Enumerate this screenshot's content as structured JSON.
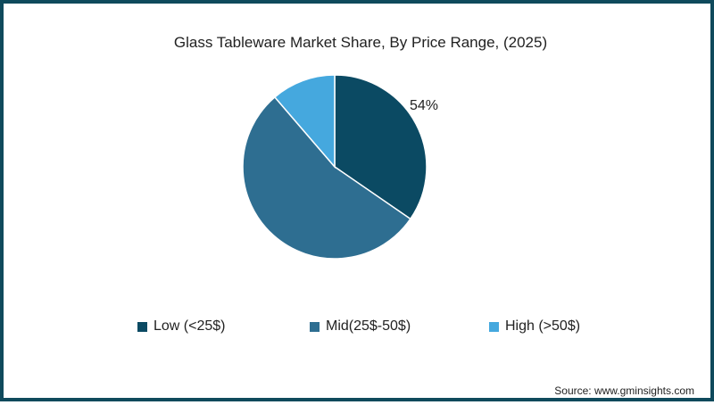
{
  "chart_data": {
    "type": "pie",
    "title": "Glass Tableware Market Share, By Price Range, (2025)",
    "categories": [
      "Low (<25$)",
      "Mid(25$-50$)",
      "High (>50$)"
    ],
    "values": [
      34.6,
      54.1,
      11.3
    ],
    "colors": [
      "#0b4a63",
      "#2e6e91",
      "#45a8de"
    ],
    "data_labels": [
      {
        "category": "Mid(25$-50$)",
        "text": "54%"
      }
    ],
    "legend_position": "bottom",
    "start_angle_deg": 0,
    "direction": "clockwise"
  },
  "title": "Glass Tableware Market Share, By Price Range, (2025)",
  "pie_label": "54%",
  "legend": [
    {
      "label": "Low (<25$)",
      "color": "#0b4a63"
    },
    {
      "label": "Mid(25$-50$)",
      "color": "#2e6e91"
    },
    {
      "label": "High (>50$)",
      "color": "#45a8de"
    }
  ],
  "source": "Source: www.gminsights.com",
  "border_color": "#0f4a5c"
}
